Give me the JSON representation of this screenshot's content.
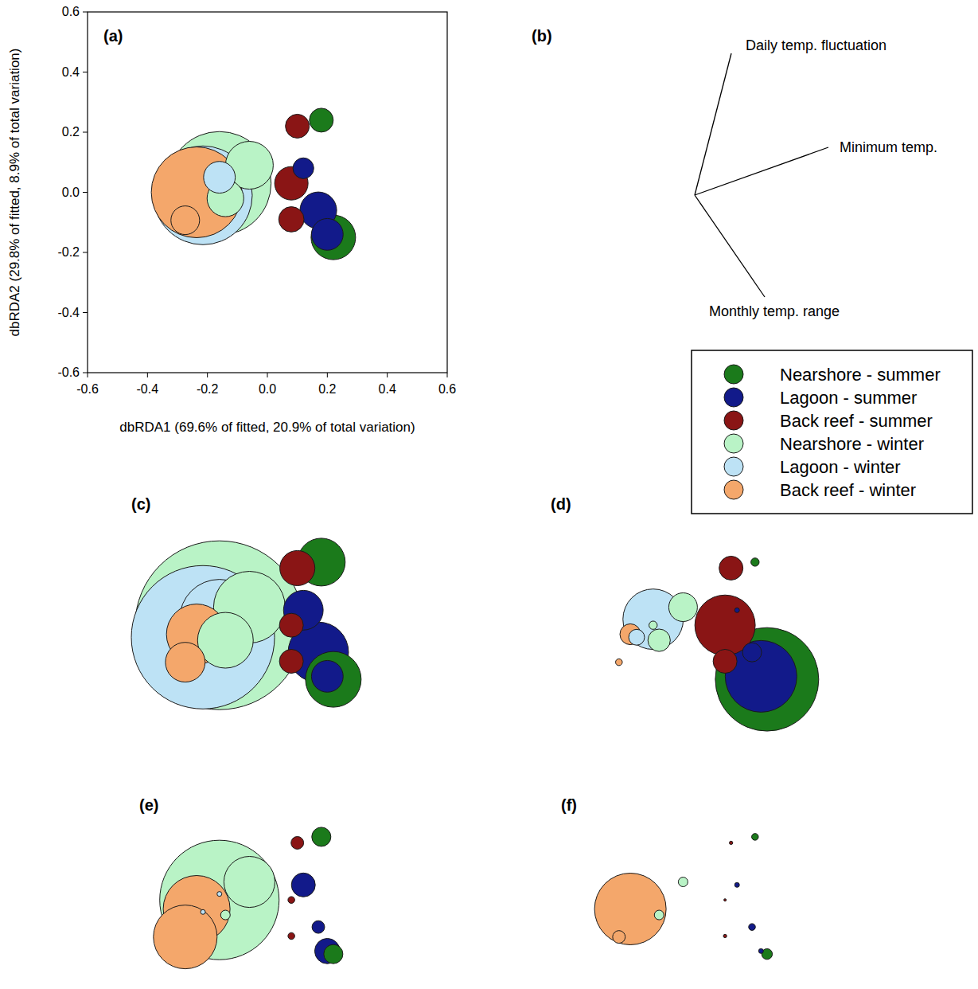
{
  "chart_data": [
    {
      "type": "bubble",
      "title": "(a)",
      "x_label": "dbRDA1 (69.6% of fitted, 20.9% of total variation)",
      "y_label": "dbRDA2 (29.8% of fitted, 8.9% of total variation)",
      "xlim": [
        -0.6,
        0.6
      ],
      "ylim": [
        -0.6,
        0.6
      ],
      "xticks": [
        -0.6,
        -0.4,
        -0.2,
        {
          "value": 0,
          "label": "0.0"
        },
        0.2,
        0.4,
        0.6
      ],
      "yticks": [
        -0.6,
        -0.4,
        -0.2,
        {
          "value": 0,
          "label": "0.0"
        },
        0.2,
        0.4,
        0.6
      ],
      "legend": "right",
      "series": [
        {
          "name": "Nearshore - summer",
          "color": "#1b7a1b",
          "x": [
            0.18,
            0.22
          ],
          "y": [
            0.24,
            -0.15
          ],
          "sizes": [
            25,
            87
          ]
        },
        {
          "name": "Lagoon - summer",
          "color": "#121a8a",
          "x": [
            0.12,
            0.17,
            0.2
          ],
          "y": [
            0.08,
            -0.06,
            -0.14
          ],
          "sizes": [
            19,
            59,
            44
          ]
        },
        {
          "name": "Back reef - summer",
          "color": "#8a1515",
          "x": [
            0.1,
            0.08,
            0.08
          ],
          "y": [
            0.22,
            0.03,
            -0.09
          ],
          "sizes": [
            25,
            49,
            28
          ]
        },
        {
          "name": "Nearshore - winter",
          "color": "#b9f3c6",
          "x": [
            -0.06,
            -0.14,
            -0.16
          ],
          "y": [
            0.09,
            -0.02,
            0.03
          ],
          "sizes": [
            100,
            59,
            469
          ]
        },
        {
          "name": "Lagoon - winter",
          "color": "#bde2f5",
          "x": [
            -0.215,
            -0.16
          ],
          "y": [
            -0.01,
            0.05
          ],
          "sizes": [
            427,
            44
          ]
        },
        {
          "name": "Back reef - winter",
          "color": "#f4a76b",
          "x": [
            -0.236,
            -0.274
          ],
          "y": [
            0.0,
            -0.093
          ],
          "sizes": [
            361,
            36
          ]
        }
      ]
    },
    {
      "type": "biplot",
      "title": "(b)",
      "vectors": [
        {
          "label": "Daily temp. fluctuation",
          "x": 0.23,
          "y": 0.89
        },
        {
          "label": "Minimum temp.",
          "x": 0.84,
          "y": 0.3
        },
        {
          "label": "Monthly temp. range",
          "x": 0.44,
          "y": -0.64
        }
      ]
    },
    {
      "type": "bubble",
      "title": "(c)",
      "tick_labels": false,
      "series": [
        {
          "sizes": [
            100,
            136
          ]
        },
        {
          "sizes": [
            69,
            160,
            44
          ]
        },
        {
          "sizes": [
            54,
            25,
            25
          ]
        },
        {
          "sizes": [
            225,
            136,
            1248
          ]
        },
        {
          "sizes": [
            900,
            278
          ]
        },
        {
          "sizes": [
            160,
            69
          ]
        }
      ]
    },
    {
      "type": "bubble",
      "title": "(d)",
      "tick_labels": false,
      "series": [
        {
          "sizes": [
            3,
            469
          ]
        },
        {
          "sizes": [
            1,
            16,
            225
          ]
        },
        {
          "sizes": [
            25,
            160,
            25
          ]
        },
        {
          "sizes": [
            36,
            22,
            3
          ]
        },
        {
          "sizes": [
            11,
            160
          ]
        },
        {
          "sizes": [
            19,
            2
          ]
        }
      ]
    },
    {
      "type": "bubble",
      "title": "(e)",
      "tick_labels": false,
      "series": [
        {
          "sizes": [
            16,
            16
          ]
        },
        {
          "sizes": [
            25,
            7,
            28
          ]
        },
        {
          "sizes": [
            7,
            2,
            2
          ]
        },
        {
          "sizes": [
            114,
            4,
            625
          ]
        },
        {
          "sizes": [
            1,
            1
          ]
        },
        {
          "sizes": [
            196,
            178
          ]
        }
      ]
    },
    {
      "type": "bubble",
      "title": "(f)",
      "tick_labels": false,
      "series": [
        {
          "sizes": [
            2,
            5
          ]
        },
        {
          "sizes": [
            1,
            2,
            1
          ]
        },
        {
          "sizes": [
            0.5,
            0.25,
            0.5
          ]
        },
        {
          "sizes": [
            4,
            4,
            0
          ]
        },
        {
          "sizes": [
            0,
            0
          ]
        },
        {
          "sizes": [
            225,
            7
          ]
        }
      ]
    }
  ]
}
